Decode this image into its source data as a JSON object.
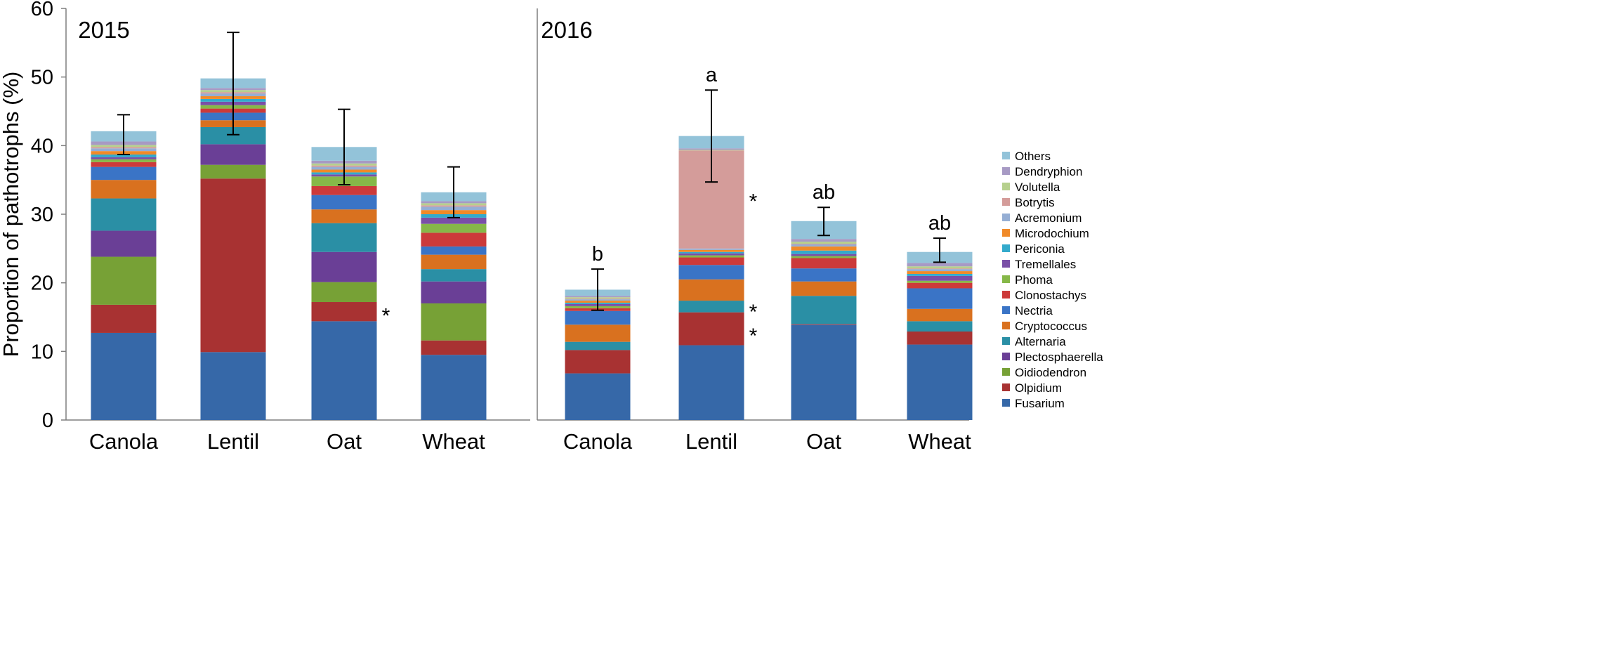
{
  "chart_data": {
    "type": "stacked-bar",
    "ylabel": "Proportion of pathotrophs  (%)",
    "ylim": [
      0,
      60
    ],
    "yticks": [
      0,
      10,
      20,
      30,
      40,
      50,
      60
    ],
    "legend_position": "right",
    "series_names": [
      "Fusarium",
      "Olpidium",
      "Oidiodendron",
      "Plectosphaerella",
      "Alternaria",
      "Cryptococcus",
      "Nectria",
      "Clonostachys",
      "Phoma",
      "Tremellales",
      "Periconia",
      "Microdochium",
      "Acremonium",
      "Botrytis",
      "Volutella",
      "Dendryphion",
      "Others"
    ],
    "series_colors": [
      "#3668a8",
      "#a83232",
      "#77a136",
      "#6a3f96",
      "#2a8fa5",
      "#d9711f",
      "#3a74c6",
      "#cc3a3a",
      "#86b848",
      "#7a4fa7",
      "#33aacc",
      "#f08a28",
      "#95aed4",
      "#d49c9a",
      "#b6d08d",
      "#a79ac4",
      "#93c3d9"
    ],
    "panels": [
      {
        "year": "2015",
        "categories": [
          "Canola",
          "Lentil",
          "Oat",
          "Wheat"
        ],
        "stacks": [
          [
            12.7,
            4.1,
            7.0,
            3.8,
            4.7,
            2.7,
            1.9,
            0.7,
            0.4,
            0.3,
            0.4,
            0.5,
            0.4,
            0.2,
            0.3,
            0.5,
            1.5
          ],
          [
            9.9,
            25.3,
            2.0,
            3.0,
            2.5,
            1.0,
            1.1,
            0.6,
            0.5,
            0.5,
            0.4,
            0.4,
            0.4,
            0.2,
            0.3,
            0.3,
            1.4
          ],
          [
            14.4,
            2.8,
            2.9,
            4.4,
            4.2,
            2.0,
            2.1,
            1.3,
            1.4,
            0.3,
            0.3,
            0.4,
            0.4,
            0.2,
            0.3,
            0.4,
            2.0
          ],
          [
            9.5,
            2.1,
            5.4,
            3.2,
            1.8,
            2.1,
            1.2,
            2.0,
            1.3,
            0.9,
            0.5,
            0.6,
            0.5,
            0.2,
            0.3,
            0.3,
            1.3
          ]
        ],
        "error_bars": [
          {
            "low": 38.7,
            "high": 44.5
          },
          {
            "low": 41.6,
            "high": 56.5
          },
          {
            "low": 34.3,
            "high": 45.3
          },
          {
            "low": 29.5,
            "high": 36.9
          }
        ],
        "letters": [
          "",
          "",
          "",
          ""
        ],
        "asterisks": [
          {
            "category": "Oat",
            "value": 15.6
          }
        ]
      },
      {
        "year": "2016",
        "categories": [
          "Canola",
          "Lentil",
          "Oat",
          "Wheat"
        ],
        "stacks": [
          [
            6.8,
            3.4,
            0.0,
            0.0,
            1.2,
            2.5,
            2.0,
            0.4,
            0.3,
            0.3,
            0.2,
            0.3,
            0.2,
            0.1,
            0.2,
            0.2,
            0.9
          ],
          [
            10.9,
            4.8,
            0.0,
            0.0,
            1.7,
            3.1,
            2.1,
            1.1,
            0.3,
            0.3,
            0.2,
            0.3,
            0.2,
            14.3,
            0.1,
            0.2,
            1.8
          ],
          [
            13.9,
            0.1,
            0.0,
            0.0,
            4.1,
            2.1,
            1.9,
            1.5,
            0.3,
            0.3,
            0.5,
            0.6,
            0.3,
            0.1,
            0.3,
            0.4,
            2.6
          ],
          [
            11.0,
            1.9,
            0.0,
            0.0,
            1.5,
            1.8,
            3.0,
            0.8,
            0.3,
            0.7,
            0.3,
            0.4,
            0.3,
            0.1,
            0.3,
            0.5,
            1.6
          ]
        ],
        "error_bars": [
          {
            "low": 16.0,
            "high": 22.0
          },
          {
            "low": 34.7,
            "high": 48.1
          },
          {
            "low": 26.9,
            "high": 31.0
          },
          {
            "low": 23.0,
            "high": 26.5
          }
        ],
        "letters": [
          "b",
          "a",
          "ab",
          "ab"
        ],
        "asterisks": [
          {
            "category": "Lentil",
            "value": 32.3
          },
          {
            "category": "Lentil",
            "value": 16.2
          },
          {
            "category": "Lentil",
            "value": 12.7
          }
        ]
      }
    ],
    "asterisk_symbol": "*"
  }
}
